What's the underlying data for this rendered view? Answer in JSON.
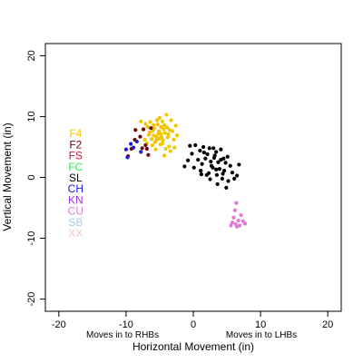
{
  "chart_data": {
    "type": "scatter",
    "xlabel": "Horizontal Movement (in)",
    "ylabel": "Vertical Movement (in)",
    "xlim": [
      -22,
      22
    ],
    "ylim": [
      -22,
      22
    ],
    "xticks": [
      -20,
      -10,
      0,
      10,
      20
    ],
    "yticks": [
      -20,
      -10,
      0,
      10,
      20
    ],
    "grid": false,
    "legend_position": "left",
    "annotations": {
      "left": "Moves in to RHBs",
      "right": "Moves in to LHBs"
    },
    "legend": [
      {
        "label": "F4",
        "color": "#f2c500"
      },
      {
        "label": "F2",
        "color": "#6b0a0a"
      },
      {
        "label": "FS",
        "color": "#d8123c"
      },
      {
        "label": "FC",
        "color": "#2ee84f"
      },
      {
        "label": "SL",
        "color": "#000000"
      },
      {
        "label": "CH",
        "color": "#1a1adb"
      },
      {
        "label": "KN",
        "color": "#9b35e0"
      },
      {
        "label": "CU",
        "color": "#e07ad6"
      },
      {
        "label": "SB",
        "color": "#a8cbe6"
      },
      {
        "label": "XX",
        "color": "#f4c8c8"
      }
    ],
    "series": [
      {
        "name": "F4",
        "color": "#f2c500",
        "points": [
          [
            -5.5,
            6.7
          ],
          [
            -4.8,
            7.1
          ],
          [
            -6.2,
            6.3
          ],
          [
            -5.1,
            7.6
          ],
          [
            -4.2,
            7.3
          ],
          [
            -5.9,
            6.9
          ],
          [
            -4.5,
            6.1
          ],
          [
            -6.5,
            7.4
          ],
          [
            -3.9,
            8.2
          ],
          [
            -5.3,
            8.7
          ],
          [
            -4.6,
            9.2
          ],
          [
            -6.8,
            8.3
          ],
          [
            -3.5,
            7.8
          ],
          [
            -5.7,
            5.8
          ],
          [
            -4.9,
            5.4
          ],
          [
            -6.1,
            5.3
          ],
          [
            -7.2,
            6.2
          ],
          [
            -3.8,
            6.6
          ],
          [
            -4.3,
            8.6
          ],
          [
            -5.0,
            9.8
          ],
          [
            -4.0,
            10.3
          ],
          [
            -3.3,
            9.4
          ],
          [
            -6.4,
            9.1
          ],
          [
            -7.5,
            7.9
          ],
          [
            -5.8,
            8.1
          ],
          [
            -4.7,
            6.6
          ],
          [
            -5.4,
            6.2
          ],
          [
            -3.6,
            5.1
          ],
          [
            -4.1,
            4.7
          ],
          [
            -2.8,
            4.9
          ],
          [
            -5.6,
            4.6
          ],
          [
            -6.9,
            5.6
          ],
          [
            -7.8,
            9.2
          ],
          [
            -4.4,
            7.9
          ],
          [
            -3.1,
            7.6
          ],
          [
            -2.6,
            8.5
          ],
          [
            -5.2,
            7.2
          ],
          [
            -6.0,
            7.7
          ],
          [
            -4.8,
            8.3
          ],
          [
            -3.7,
            7.1
          ],
          [
            -5.0,
            6.4
          ],
          [
            -4.3,
            3.6
          ],
          [
            -6.6,
            7.0
          ],
          [
            -5.9,
            8.6
          ],
          [
            -2.9,
            6.2
          ],
          [
            -2.4,
            6.9
          ],
          [
            -7.1,
            8.8
          ],
          [
            -4.6,
            5.6
          ],
          [
            -5.4,
            9.4
          ],
          [
            -3.4,
            4.3
          ]
        ]
      },
      {
        "name": "F2",
        "color": "#6b0a0a",
        "points": [
          [
            -8.6,
            7.8
          ],
          [
            -7.4,
            7.9
          ],
          [
            -6.3,
            8.1
          ],
          [
            -7.1,
            5.3
          ],
          [
            -7.6,
            4.8
          ],
          [
            -6.9,
            4.7
          ],
          [
            -9.2,
            4.7
          ],
          [
            -9.7,
            3.5
          ],
          [
            -6.7,
            3.7
          ],
          [
            -8.7,
            6.2
          ],
          [
            -7.9,
            6.7
          ]
        ]
      },
      {
        "name": "CH",
        "color": "#1a1adb",
        "points": [
          [
            -10.0,
            4.6
          ],
          [
            -9.3,
            5.5
          ],
          [
            -8.9,
            4.9
          ],
          [
            -9.8,
            3.3
          ],
          [
            -8.4,
            5.9
          ],
          [
            -7.8,
            4.2
          ]
        ]
      },
      {
        "name": "SL",
        "color": "#000000",
        "points": [
          [
            -0.5,
            5.2
          ],
          [
            0.3,
            5.3
          ],
          [
            1.5,
            5.0
          ],
          [
            2.4,
            4.8
          ],
          [
            3.0,
            4.8
          ],
          [
            3.4,
            4.2
          ],
          [
            4.1,
            4.6
          ],
          [
            1.0,
            4.4
          ],
          [
            2.1,
            3.8
          ],
          [
            3.2,
            3.6
          ],
          [
            4.5,
            3.1
          ],
          [
            1.8,
            3.1
          ],
          [
            2.6,
            2.6
          ],
          [
            3.7,
            2.5
          ],
          [
            4.8,
            2.4
          ],
          [
            5.5,
            1.9
          ],
          [
            0.7,
            2.9
          ],
          [
            1.3,
            2.2
          ],
          [
            2.9,
            1.6
          ],
          [
            3.9,
            1.4
          ],
          [
            4.6,
            1.1
          ],
          [
            5.8,
            0.8
          ],
          [
            6.5,
            0.3
          ],
          [
            0.1,
            1.6
          ],
          [
            1.1,
            1.1
          ],
          [
            2.3,
            0.7
          ],
          [
            3.5,
            0.4
          ],
          [
            4.3,
            -0.2
          ],
          [
            5.2,
            -0.6
          ],
          [
            4.9,
            -1.7
          ],
          [
            2.7,
            1.9
          ],
          [
            3.4,
            1.3
          ],
          [
            4.1,
            2.9
          ],
          [
            2.0,
            0.4
          ],
          [
            6.8,
            2.1
          ],
          [
            -0.8,
            2.8
          ],
          [
            -1.3,
            1.8
          ],
          [
            1.6,
            4.1
          ],
          [
            5.1,
            3.4
          ],
          [
            3.6,
            -1.1
          ],
          [
            4.4,
            0.6
          ],
          [
            2.5,
            -0.3
          ],
          [
            6.1,
            -0.2
          ],
          [
            1.2,
            0.5
          ],
          [
            3.1,
            3.2
          ],
          [
            -0.2,
            3.9
          ]
        ]
      },
      {
        "name": "CU",
        "color": "#e07ad6",
        "points": [
          [
            6.4,
            -4.2
          ],
          [
            6.2,
            -5.4
          ],
          [
            7.1,
            -6.2
          ],
          [
            6.0,
            -6.6
          ],
          [
            6.7,
            -7.1
          ],
          [
            7.4,
            -7.2
          ],
          [
            7.7,
            -7.6
          ],
          [
            5.8,
            -7.4
          ],
          [
            6.3,
            -7.7
          ],
          [
            6.9,
            -7.9
          ],
          [
            5.6,
            -7.9
          ],
          [
            6.5,
            -8.1
          ]
        ]
      }
    ]
  }
}
